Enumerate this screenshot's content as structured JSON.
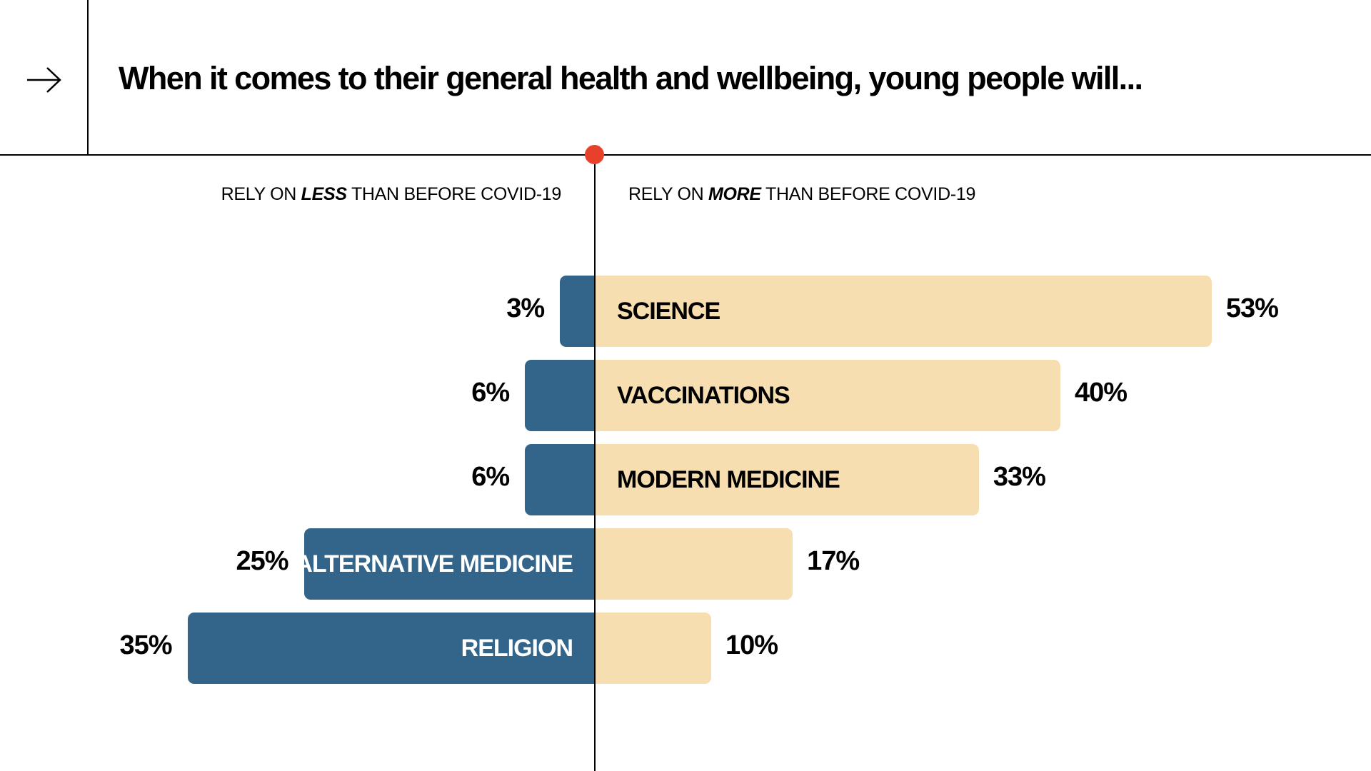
{
  "header": {
    "title": "When it comes to  their general health and wellbeing, young people will...",
    "arrow_icon": "arrow-right-icon"
  },
  "colors": {
    "less": "#336489",
    "more": "#f7deb0",
    "accent_dot": "#e8412b"
  },
  "chart_data": {
    "type": "bar",
    "orientation": "diverging-horizontal",
    "title": "When it comes to  their general health and wellbeing, young people will...",
    "side_labels": {
      "less": {
        "prefix": "RELY ON ",
        "emphasis": "LESS",
        "suffix": " THAN BEFORE COVID-19"
      },
      "more": {
        "prefix": "RELY ON ",
        "emphasis": "MORE",
        "suffix": " THAN BEFORE COVID-19"
      }
    },
    "categories": [
      "SCIENCE",
      "VACCINATIONS",
      "MODERN MEDICINE",
      "ALTERNATIVE MEDICINE",
      "RELIGION"
    ],
    "label_side": [
      "more",
      "more",
      "more",
      "less",
      "less"
    ],
    "series": [
      {
        "name": "RELY ON LESS THAN BEFORE COVID-19",
        "values": [
          3,
          6,
          6,
          25,
          35
        ],
        "labels": [
          "3%",
          "6%",
          "6%",
          "25%",
          "35%"
        ]
      },
      {
        "name": "RELY ON MORE THAN BEFORE COVID-19",
        "values": [
          53,
          40,
          33,
          17,
          10
        ],
        "labels": [
          "53%",
          "40%",
          "33%",
          "17%",
          "10%"
        ]
      }
    ],
    "unit": "%"
  }
}
